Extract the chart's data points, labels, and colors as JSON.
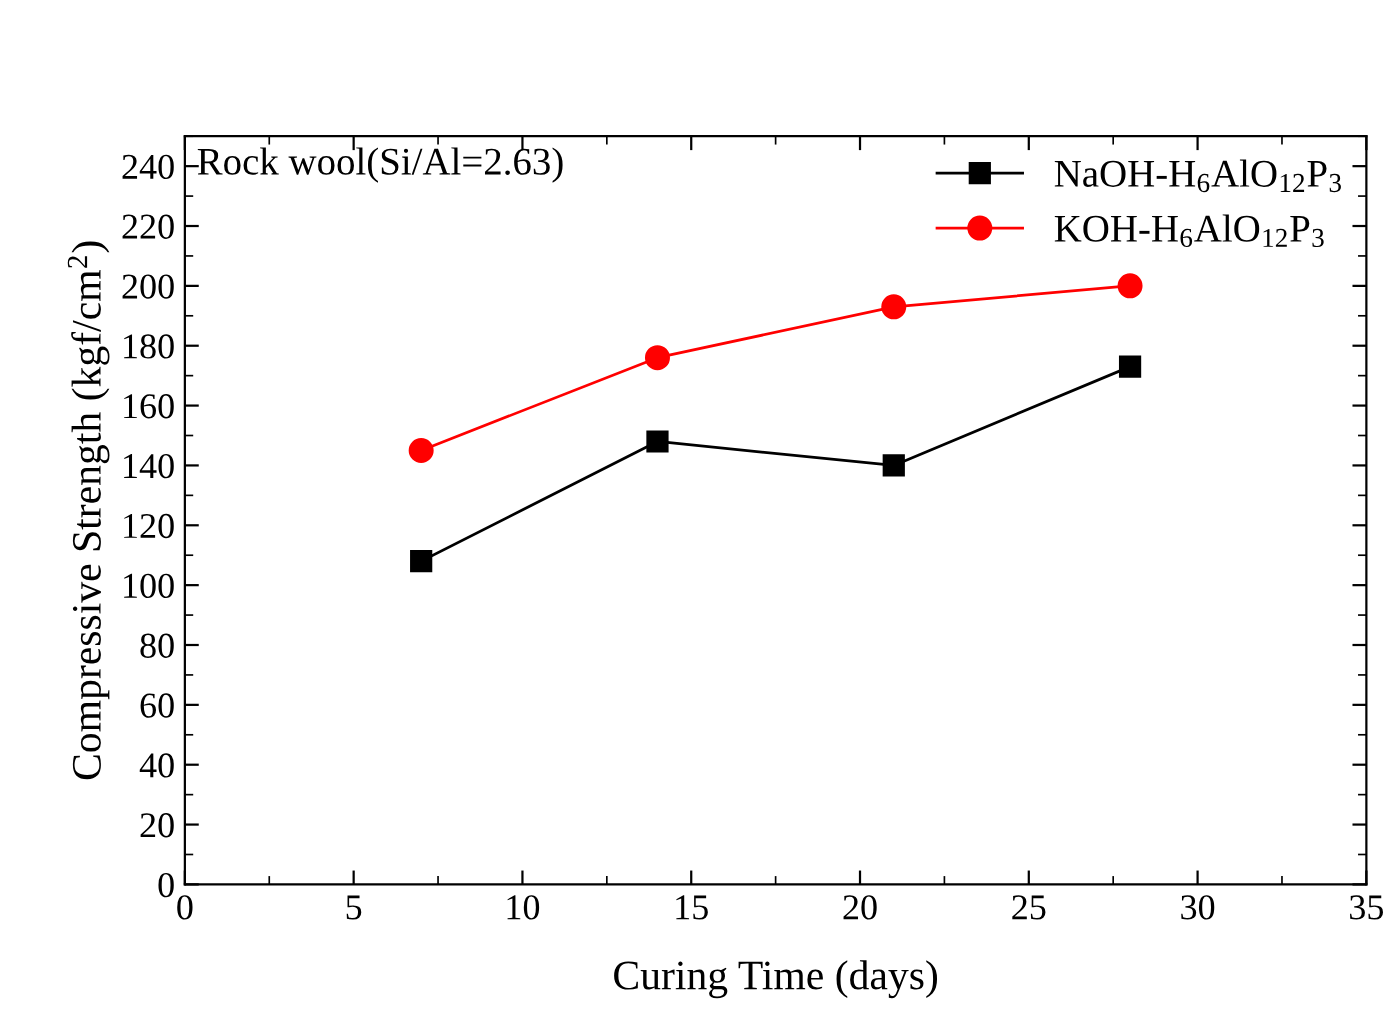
{
  "chart_data": {
    "type": "line",
    "xlabel": "Curing Time (days)",
    "ylabel": "Compressive Strength (kgf/cm$^{2}$)",
    "annotations": [
      "Rock wool(Si/Al=2.63)"
    ],
    "x": [
      7,
      14,
      21,
      28
    ],
    "series": [
      {
        "name": "NaOH-H$_{6}$AlO$_{12}$P$_{3}$",
        "color": "#000000",
        "marker": "square",
        "values": [
          108,
          148,
          140,
          173
        ]
      },
      {
        "name": "KOH-H$_{6}$AlO$_{12}$P$_{3}$",
        "color": "#ff0000",
        "marker": "circle",
        "values": [
          145,
          176,
          193,
          200
        ]
      }
    ],
    "xlim": [
      0,
      35
    ],
    "xticks": [
      0,
      5,
      10,
      15,
      20,
      25,
      30,
      35
    ],
    "ylim": [
      0,
      250
    ],
    "yticks": [
      0,
      20,
      40,
      60,
      80,
      100,
      120,
      140,
      160,
      180,
      200,
      220,
      240
    ],
    "grid": false,
    "legend": "top right",
    "line_style": "solid"
  }
}
